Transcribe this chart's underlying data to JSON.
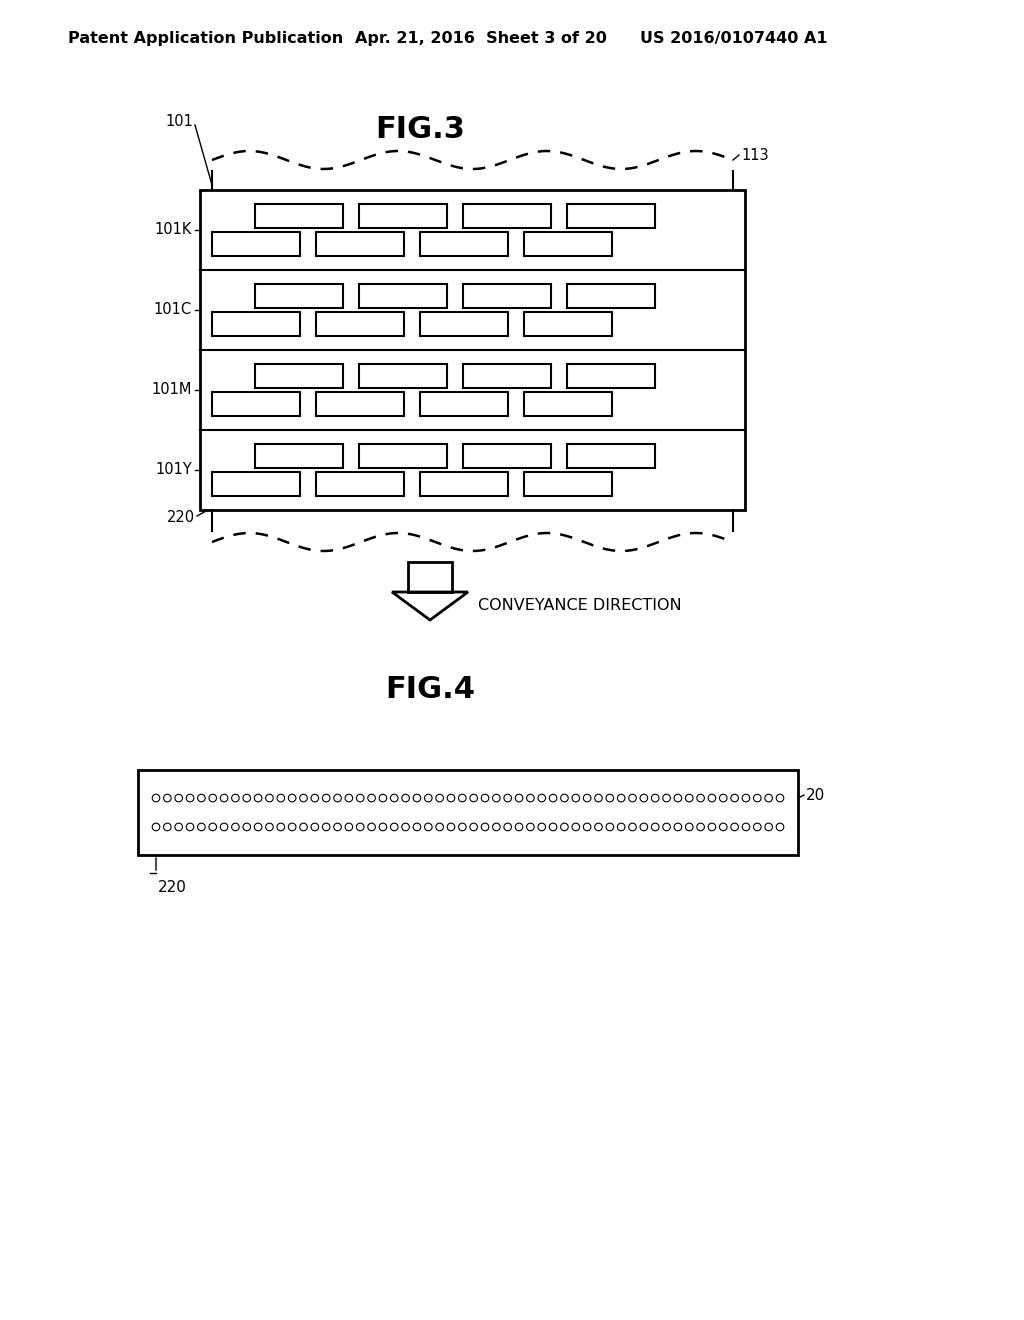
{
  "bg_color": "#ffffff",
  "header_left": "Patent Application Publication",
  "header_mid": "Apr. 21, 2016  Sheet 3 of 20",
  "header_right": "US 2016/0107440 A1",
  "fig3_title": "FIG.3",
  "fig4_title": "FIG.4",
  "conveyance_label": "CONVEYANCE DIRECTION",
  "label_101": "101",
  "label_113": "113",
  "label_101K": "101K",
  "label_101C": "101C",
  "label_101M": "101M",
  "label_101Y": "101Y",
  "label_220_fig3": "220",
  "label_20": "20",
  "label_220_fig4": "220",
  "row_labels": [
    "101K",
    "101C",
    "101M",
    "101Y"
  ]
}
